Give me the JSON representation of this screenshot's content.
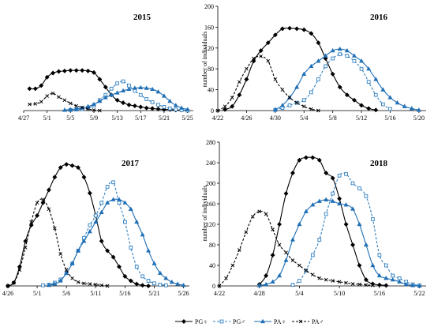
{
  "legend": [
    {
      "label": "PG♀",
      "color": "#000000",
      "dash": "",
      "marker": "diamond",
      "fill": "#000000"
    },
    {
      "label": "PG♂",
      "color": "#2f7fc1",
      "dash": "3,2",
      "marker": "square",
      "fill": "#ffffff"
    },
    {
      "label": "PA♀",
      "color": "#1f6fb5",
      "dash": "",
      "marker": "triangle",
      "fill": "#1f6fb5"
    },
    {
      "label": "PA♂",
      "color": "#000000",
      "dash": "3,2",
      "marker": "x",
      "fill": "#000000"
    }
  ],
  "chart_data": [
    {
      "type": "line",
      "title": "2015",
      "ylabel": "",
      "xlabel": "",
      "x_ticks": [
        "4/27",
        "5/1",
        "5/5",
        "5/9",
        "5/13",
        "5/17",
        "5/21",
        "5/25"
      ],
      "x_range": [
        "4/27",
        "5/26"
      ],
      "ylim": [
        0,
        200
      ],
      "y_ticks": [],
      "series": [
        {
          "name": "PG♀",
          "x": [
            "4/28",
            "4/29",
            "4/30",
            "5/1",
            "5/2",
            "5/3",
            "5/4",
            "5/5",
            "5/6",
            "5/7",
            "5/8",
            "5/9",
            "5/10",
            "5/11",
            "5/12",
            "5/13",
            "5/14",
            "5/15",
            "5/16",
            "5/17",
            "5/18",
            "5/19",
            "5/20",
            "5/21",
            "5/22",
            "5/23",
            "5/24",
            "5/25"
          ],
          "values": [
            42,
            42,
            48,
            64,
            72,
            75,
            76,
            77,
            77,
            77,
            76,
            73,
            60,
            45,
            30,
            20,
            15,
            11,
            9,
            7,
            5,
            4,
            3,
            2,
            2,
            1,
            1,
            0
          ]
        },
        {
          "name": "PG♂",
          "x": [
            "5/5",
            "5/6",
            "5/7",
            "5/8",
            "5/9",
            "5/10",
            "5/11",
            "5/12",
            "5/13",
            "5/14",
            "5/15",
            "5/16",
            "5/17",
            "5/18",
            "5/19",
            "5/20",
            "5/21",
            "5/22",
            "5/23",
            "5/24",
            "5/25"
          ],
          "values": [
            1,
            2,
            3,
            5,
            10,
            20,
            30,
            42,
            52,
            56,
            48,
            38,
            30,
            22,
            16,
            11,
            7,
            4,
            2,
            1,
            0
          ]
        },
        {
          "name": "PA♀",
          "x": [
            "5/4",
            "5/5",
            "5/6",
            "5/7",
            "5/8",
            "5/9",
            "5/10",
            "5/11",
            "5/12",
            "5/13",
            "5/14",
            "5/15",
            "5/16",
            "5/17",
            "5/18",
            "5/19",
            "5/20",
            "5/21",
            "5/22",
            "5/23",
            "5/24",
            "5/25"
          ],
          "values": [
            1,
            2,
            3,
            5,
            8,
            12,
            18,
            25,
            30,
            34,
            38,
            41,
            43,
            44,
            43,
            41,
            36,
            28,
            18,
            10,
            5,
            2
          ]
        },
        {
          "name": "PA♂",
          "x": [
            "4/28",
            "4/29",
            "4/30",
            "5/1",
            "5/2",
            "5/3",
            "5/4",
            "5/5",
            "5/6",
            "5/7",
            "5/8",
            "5/9",
            "5/10"
          ],
          "values": [
            12,
            13,
            17,
            28,
            33,
            26,
            20,
            14,
            9,
            6,
            3,
            1,
            0
          ]
        }
      ]
    },
    {
      "type": "line",
      "title": "2016",
      "ylabel": "number of individuals",
      "xlabel": "",
      "x_ticks": [
        "4/22",
        "4/26",
        "4/30",
        "5/4",
        "5/8",
        "5/12",
        "5/16",
        "5/20"
      ],
      "x_range": [
        "4/22",
        "5/21"
      ],
      "ylim": [
        0,
        200
      ],
      "y_ticks": [
        0,
        40,
        80,
        120,
        160,
        200
      ],
      "series": [
        {
          "name": "PG♀",
          "x": [
            "4/23",
            "4/24",
            "4/25",
            "4/26",
            "4/27",
            "4/28",
            "4/29",
            "4/30",
            "5/1",
            "5/2",
            "5/3",
            "5/4",
            "5/5",
            "5/6",
            "5/7",
            "5/8",
            "5/9",
            "5/10",
            "5/11",
            "5/12",
            "5/13",
            "5/14"
          ],
          "values": [
            2,
            8,
            30,
            60,
            95,
            115,
            130,
            145,
            157,
            158,
            157,
            155,
            148,
            130,
            100,
            70,
            45,
            30,
            20,
            10,
            4,
            1
          ]
        },
        {
          "name": "PG♂",
          "x": [
            "4/30",
            "5/1",
            "5/2",
            "5/3",
            "5/4",
            "5/5",
            "5/6",
            "5/7",
            "5/8",
            "5/9",
            "5/10",
            "5/11",
            "5/12",
            "5/13",
            "5/14",
            "5/15",
            "5/16"
          ],
          "values": [
            1,
            5,
            10,
            15,
            20,
            35,
            60,
            85,
            100,
            108,
            105,
            95,
            80,
            55,
            30,
            12,
            3
          ]
        },
        {
          "name": "PA♀",
          "x": [
            "4/30",
            "5/1",
            "5/2",
            "5/3",
            "5/4",
            "5/5",
            "5/6",
            "5/7",
            "5/8",
            "5/9",
            "5/10",
            "5/11",
            "5/12",
            "5/13",
            "5/14",
            "5/15",
            "5/16",
            "5/17",
            "5/18",
            "5/19",
            "5/20"
          ],
          "values": [
            2,
            10,
            25,
            45,
            70,
            85,
            95,
            105,
            115,
            118,
            115,
            105,
            95,
            80,
            60,
            40,
            25,
            15,
            8,
            4,
            1
          ]
        },
        {
          "name": "PA♂",
          "x": [
            "4/22",
            "4/23",
            "4/24",
            "4/25",
            "4/26",
            "4/27",
            "4/28",
            "4/29",
            "4/30",
            "5/1",
            "5/2",
            "5/3",
            "5/4",
            "5/5",
            "5/6"
          ],
          "values": [
            0,
            8,
            25,
            55,
            80,
            100,
            104,
            95,
            60,
            40,
            25,
            15,
            8,
            3,
            0
          ]
        }
      ]
    },
    {
      "type": "line",
      "title": "2017",
      "ylabel": "",
      "xlabel": "",
      "x_ticks": [
        "4/26",
        "5/1",
        "5/6",
        "5/11",
        "5/16",
        "5/21",
        "5/26"
      ],
      "x_range": [
        "4/26",
        "5/27"
      ],
      "ylim": [
        0,
        200
      ],
      "y_ticks": [],
      "series": [
        {
          "name": "PG♀",
          "x": [
            "4/26",
            "4/27",
            "4/28",
            "4/29",
            "4/30",
            "5/1",
            "5/2",
            "5/3",
            "5/4",
            "5/5",
            "5/6",
            "5/7",
            "5/8",
            "5/9",
            "5/10",
            "5/11",
            "5/12",
            "5/13",
            "5/14",
            "5/15",
            "5/16",
            "5/17",
            "5/18",
            "5/19",
            "5/20"
          ],
          "values": [
            0,
            5,
            30,
            70,
            95,
            110,
            130,
            150,
            170,
            185,
            190,
            188,
            185,
            170,
            145,
            110,
            70,
            55,
            45,
            30,
            15,
            8,
            3,
            1,
            0
          ]
        },
        {
          "name": "PG♂",
          "x": [
            "5/2",
            "5/3",
            "5/4",
            "5/5",
            "5/6",
            "5/7",
            "5/8",
            "5/9",
            "5/10",
            "5/11",
            "5/12",
            "5/13",
            "5/14",
            "5/15",
            "5/16",
            "5/17",
            "5/18",
            "5/19",
            "5/20",
            "5/21",
            "5/22",
            "5/23"
          ],
          "values": [
            1,
            2,
            5,
            10,
            20,
            35,
            55,
            75,
            95,
            110,
            130,
            155,
            162,
            130,
            100,
            60,
            30,
            15,
            8,
            4,
            2,
            1
          ]
        },
        {
          "name": "PA♀",
          "x": [
            "5/3",
            "5/4",
            "5/5",
            "5/6",
            "5/7",
            "5/8",
            "5/9",
            "5/10",
            "5/11",
            "5/12",
            "5/13",
            "5/14",
            "5/15",
            "5/16",
            "5/17",
            "5/18",
            "5/19",
            "5/20",
            "5/21",
            "5/22",
            "5/23",
            "5/24",
            "5/25",
            "5/26"
          ],
          "values": [
            1,
            3,
            8,
            20,
            35,
            55,
            70,
            85,
            100,
            115,
            130,
            135,
            135,
            130,
            120,
            100,
            80,
            55,
            35,
            20,
            12,
            6,
            3,
            1
          ]
        },
        {
          "name": "PA♂",
          "x": [
            "4/26",
            "4/27",
            "4/28",
            "4/29",
            "4/30",
            "5/1",
            "5/2",
            "5/3",
            "5/4",
            "5/5",
            "5/6",
            "5/7",
            "5/8",
            "5/9",
            "5/10",
            "5/11",
            "5/12",
            "5/13"
          ],
          "values": [
            0,
            5,
            25,
            60,
            100,
            130,
            135,
            120,
            90,
            50,
            25,
            12,
            6,
            4,
            3,
            2,
            1,
            0
          ]
        }
      ]
    },
    {
      "type": "line",
      "title": "2018",
      "ylabel": "number of individuals",
      "xlabel": "",
      "x_ticks": [
        "4/22",
        "4/28",
        "5/4",
        "5/10",
        "5/16",
        "5/22"
      ],
      "x_range": [
        "4/22",
        "5/23"
      ],
      "ylim": [
        0,
        280
      ],
      "y_ticks": [
        0,
        40,
        80,
        120,
        160,
        200,
        240,
        280
      ],
      "series": [
        {
          "name": "PG♀",
          "x": [
            "4/28",
            "4/29",
            "4/30",
            "5/1",
            "5/2",
            "5/3",
            "5/4",
            "5/5",
            "5/6",
            "5/7",
            "5/8",
            "5/9",
            "5/10",
            "5/11",
            "5/12",
            "5/13",
            "5/14",
            "5/15",
            "5/16",
            "5/17"
          ],
          "values": [
            3,
            20,
            60,
            120,
            180,
            220,
            245,
            250,
            250,
            245,
            220,
            210,
            170,
            120,
            80,
            40,
            12,
            4,
            2,
            1
          ]
        },
        {
          "name": "PG♂",
          "x": [
            "5/3",
            "5/4",
            "5/5",
            "5/6",
            "5/7",
            "5/8",
            "5/9",
            "5/10",
            "5/11",
            "5/12",
            "5/13",
            "5/14",
            "5/15",
            "5/16",
            "5/17",
            "5/18",
            "5/19",
            "5/20",
            "5/21",
            "5/22"
          ],
          "values": [
            2,
            10,
            30,
            60,
            90,
            140,
            180,
            215,
            218,
            200,
            190,
            175,
            130,
            60,
            40,
            20,
            15,
            8,
            3,
            1
          ]
        },
        {
          "name": "PA♀",
          "x": [
            "4/28",
            "4/29",
            "4/30",
            "5/1",
            "5/2",
            "5/3",
            "5/4",
            "5/5",
            "5/6",
            "5/7",
            "5/8",
            "5/9",
            "5/10",
            "5/11",
            "5/12",
            "5/13",
            "5/14",
            "5/15",
            "5/16",
            "5/17",
            "5/18",
            "5/19",
            "5/20",
            "5/21",
            "5/22"
          ],
          "values": [
            1,
            3,
            8,
            20,
            50,
            90,
            120,
            145,
            158,
            165,
            168,
            165,
            160,
            158,
            150,
            120,
            80,
            40,
            20,
            15,
            12,
            8,
            3,
            1,
            0
          ]
        },
        {
          "name": "PA♂",
          "x": [
            "4/22",
            "4/23",
            "4/24",
            "4/25",
            "4/26",
            "4/27",
            "4/28",
            "4/29",
            "4/30",
            "5/1",
            "5/2",
            "5/3",
            "5/4",
            "5/5",
            "5/6",
            "5/7",
            "5/8",
            "5/9",
            "5/10",
            "5/11",
            "5/12",
            "5/13",
            "5/14",
            "5/15"
          ],
          "values": [
            0,
            15,
            40,
            70,
            105,
            135,
            145,
            140,
            110,
            80,
            65,
            50,
            40,
            30,
            22,
            15,
            12,
            10,
            8,
            6,
            4,
            3,
            2,
            1
          ]
        }
      ]
    }
  ]
}
